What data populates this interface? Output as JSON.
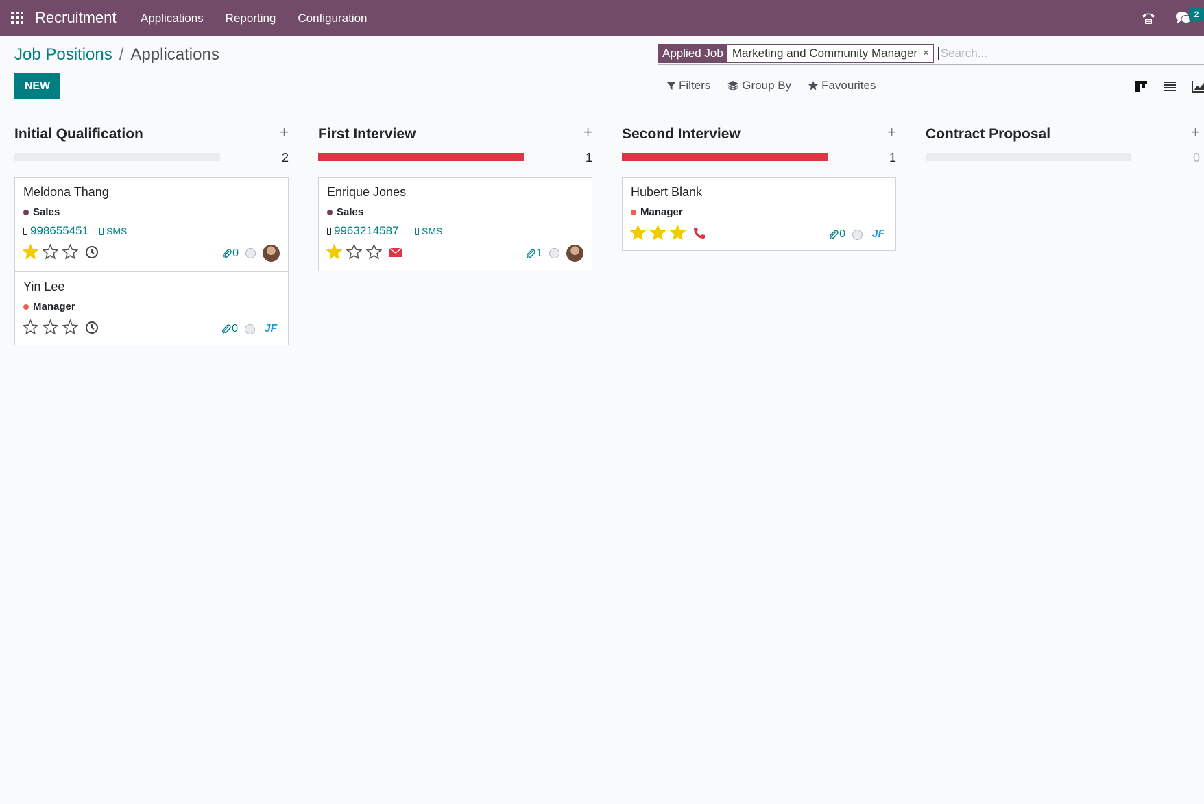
{
  "navbar": {
    "app_title": "Recruitment",
    "menu": [
      "Applications",
      "Reporting",
      "Configuration"
    ],
    "chat_badge": "2",
    "bg_color": "#714b67"
  },
  "control_panel": {
    "breadcrumb_parent": "Job Positions",
    "breadcrumb_separator": "/",
    "breadcrumb_current": "Applications",
    "new_button": "NEW",
    "search": {
      "facet_label": "Applied Job",
      "facet_value": "Marketing and Community Manager",
      "facet_close": "×",
      "placeholder": "Search..."
    },
    "filters_label": "Filters",
    "group_by_label": "Group By",
    "favourites_label": "Favourites"
  },
  "columns": [
    {
      "title": "Initial Qualification",
      "count": "2",
      "progress_fraction": 0,
      "cards": [
        {
          "name": "Meldona Thang",
          "tag": "Sales",
          "tag_color": "#6c3f5d",
          "phone": "998655451",
          "sms": "SMS",
          "stars": 1,
          "activity": "clock",
          "attachments": "0",
          "avatar": "photo"
        },
        {
          "name": "Yin Lee",
          "tag": "Manager",
          "tag_color": "#f06050",
          "phone": "",
          "sms": "",
          "stars": 0,
          "activity": "clock",
          "attachments": "0",
          "avatar": "logo"
        }
      ]
    },
    {
      "title": "First Interview",
      "count": "1",
      "progress_fraction": 1,
      "cards": [
        {
          "name": "Enrique Jones",
          "tag": "Sales",
          "tag_color": "#6c3f5d",
          "phone": "9963214587",
          "sms": "SMS",
          "stars": 1,
          "activity": "email",
          "attachments": "1",
          "avatar": "photo"
        }
      ]
    },
    {
      "title": "Second Interview",
      "count": "1",
      "progress_fraction": 1,
      "cards": [
        {
          "name": "Hubert Blank",
          "tag": "Manager",
          "tag_color": "#f06050",
          "phone": "",
          "sms": "",
          "stars": 3,
          "activity": "phone",
          "attachments": "0",
          "avatar": "logo"
        }
      ]
    },
    {
      "title": "Contract Proposal",
      "count": "0",
      "progress_fraction": 0,
      "cards": []
    }
  ],
  "colors": {
    "accent": "#017e84",
    "danger": "#dc3545",
    "star_gold": "#f3cc00"
  }
}
